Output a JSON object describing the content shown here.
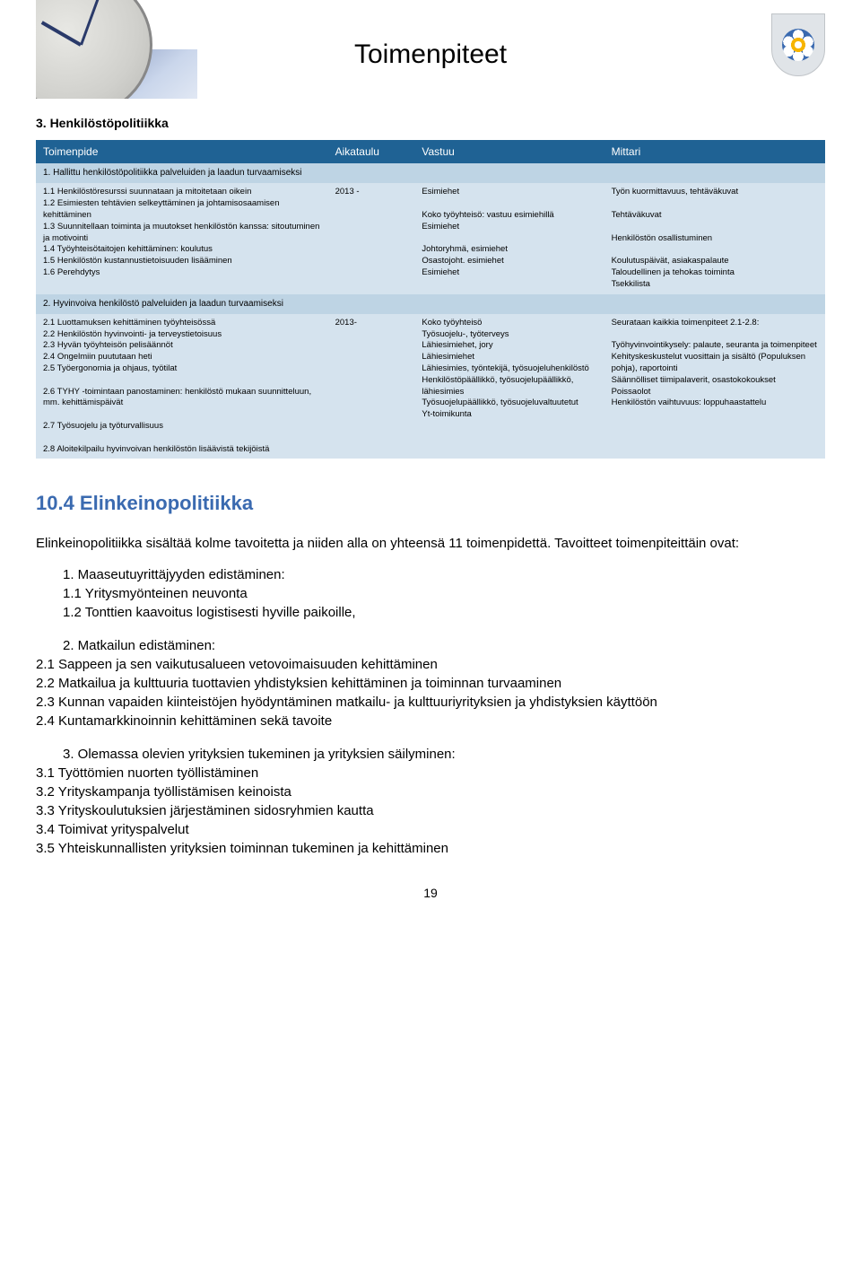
{
  "header": {
    "title": "Toimenpiteet"
  },
  "section3_title": "3. Henkilöstöpolitiikka",
  "table": {
    "head": {
      "c1": "Toimenpide",
      "c2": "Aikataulu",
      "c3": "Vastuu",
      "c4": "Mittari"
    },
    "sub1": "1. Hallittu henkilöstöpolitiikka palveluiden ja laadun turvaamiseksi",
    "row1": {
      "c1": "1.1 Henkilöstöresurssi suunnataan ja mitoitetaan oikein\n1.2 Esimiesten tehtävien selkeyttäminen ja johtamisosaamisen kehittäminen\n1.3 Suunnitellaan toiminta ja muutokset henkilöstön kanssa: sitoutuminen ja motivointi\n1.4 Työyhteisötaitojen kehittäminen: koulutus\n1.5 Henkilöstön kustannustietoisuuden lisääminen\n1.6 Perehdytys",
      "c2": "2013 -",
      "c3": "Esimiehet\n\nKoko työyhteisö: vastuu esimiehillä\nEsimiehet\n\nJohtoryhmä, esimiehet\nOsastojoht. esimiehet\nEsimiehet",
      "c4": "Työn kuormittavuus, tehtäväkuvat\n\nTehtäväkuvat\n\nHenkilöstön osallistuminen\n\nKoulutuspäivät, asiakaspalaute\nTaloudellinen ja tehokas toiminta\nTsekkilista"
    },
    "sub2": "2. Hyvinvoiva henkilöstö palveluiden ja laadun turvaamiseksi",
    "row2": {
      "c1": "2.1 Luottamuksen kehittäminen työyhteisössä\n2.2 Henkilöstön hyvinvointi- ja terveystietoisuus\n2.3 Hyvän työyhteisön pelisäännöt\n2.4 Ongelmiin puututaan heti\n2.5 Työergonomia ja ohjaus, työtilat\n\n2.6 TYHY -toimintaan panostaminen: henkilöstö mukaan suunnitteluun, mm. kehittämispäivät\n\n2.7 Työsuojelu ja työturvallisuus\n\n2.8 Aloitekilpailu hyvinvoivan henkilöstön lisäävistä tekijöistä",
      "c2": "2013-",
      "c3": "Koko työyhteisö\nTyösuojelu-, työterveys\nLähiesimiehet, jory\nLähiesimiehet\nLähiesimies, työntekijä, työsuojeluhenkilöstö\nHenkilöstöpäällikkö, työsuojelupäällikkö, lähiesimies\nTyösuojelupäällikkö, työsuojeluvaltuutetut\nYt-toimikunta",
      "c4": "Seurataan kaikkia toimenpiteet 2.1-2.8:\n\nTyöhyvinvointikysely: palaute, seuranta ja toimenpiteet\nKehityskeskustelut vuosittain ja sisältö (Populuksen pohja), raportointi\nSäännölliset tiimipalaverit, osastokokoukset\nPoissaolot\nHenkilöstön vaihtuvuus: loppuhaastattelu"
    }
  },
  "body": {
    "heading": "10.4 Elinkeinopolitiikka",
    "intro": "Elinkeinopolitiikka sisältää kolme tavoitetta ja niiden alla on yhteensä 11 toimenpidettä. Tavoitteet toimenpiteittäin ovat:",
    "g1_head_num": "1. Maaseutuyrittäjyyden edistäminen:",
    "g1_1": "1.1 Yritysmyönteinen neuvonta",
    "g1_2": "1.2 Tonttien kaavoitus logistisesti hyville paikoille,",
    "g2_head": "2. Matkailun edistäminen:",
    "g2_1": "2.1 Sappeen ja sen vaikutusalueen vetovoimaisuuden kehittäminen",
    "g2_2": "2.2 Matkailua ja kulttuuria tuottavien yhdistyksien kehittäminen ja toiminnan turvaaminen",
    "g2_3": "2.3 Kunnan vapaiden kiinteistöjen hyödyntäminen matkailu- ja kulttuuriyrityksien ja yhdistyksien käyttöön",
    "g2_4": "2.4 Kuntamarkkinoinnin kehittäminen sekä tavoite",
    "g3_head": "3. Olemassa olevien yrityksien tukeminen ja yrityksien säilyminen:",
    "g3_1": "3.1 Työttömien nuorten työllistäminen",
    "g3_2": "3.2 Yrityskampanja työllistämisen keinoista",
    "g3_3": "3.3 Yrityskoulutuksien järjestäminen sidosryhmien kautta",
    "g3_4": "3.4 Toimivat yrityspalvelut",
    "g3_5": "3.5 Yhteiskunnallisten yrityksien toiminnan tukeminen ja kehittäminen"
  },
  "page_number": "19"
}
